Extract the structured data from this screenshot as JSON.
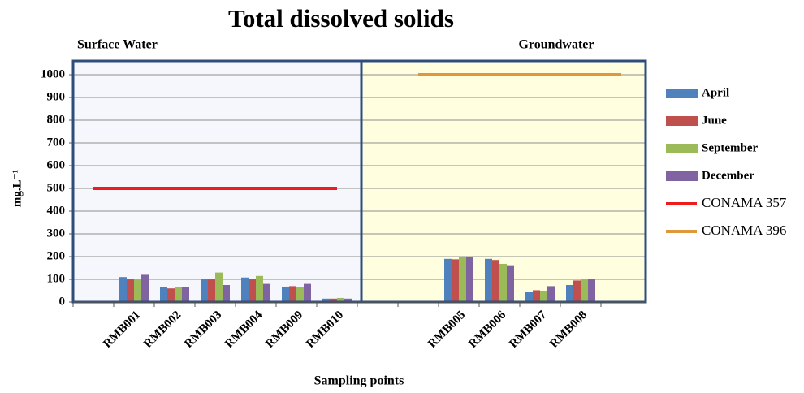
{
  "chart_data": {
    "type": "bar",
    "title": "Total dissolved solids",
    "annotations": [
      "Surface Water",
      "Groundwater"
    ],
    "x_label": "Sampling points",
    "y_label": "mg.L⁻¹",
    "categories": [
      null,
      "RMB001",
      "RMB002",
      "RMB003",
      "RMB004",
      "RMB009",
      "RMB010",
      null,
      null,
      "RMB005",
      "RMB006",
      "RMB007",
      "RMB008",
      null
    ],
    "series": [
      {
        "name": "April",
        "color": "#4f81bd",
        "values": [
          null,
          110,
          65,
          100,
          108,
          68,
          15,
          null,
          null,
          190,
          190,
          45,
          75,
          null
        ]
      },
      {
        "name": "June",
        "color": "#c0504d",
        "values": [
          null,
          100,
          60,
          100,
          100,
          70,
          15,
          null,
          null,
          188,
          185,
          52,
          95,
          null
        ]
      },
      {
        "name": "September",
        "color": "#9bbb59",
        "values": [
          null,
          100,
          65,
          130,
          115,
          65,
          18,
          null,
          null,
          200,
          168,
          50,
          100,
          null
        ]
      },
      {
        "name": "December",
        "color": "#8064a2",
        "values": [
          null,
          120,
          65,
          75,
          80,
          80,
          15,
          null,
          null,
          200,
          162,
          70,
          100,
          null
        ]
      },
      {
        "name": "CONAMA 357",
        "type": "line",
        "color": "#ee1c1c",
        "values": [
          500,
          500,
          500,
          500,
          500,
          500,
          500,
          null,
          null,
          null,
          null,
          null,
          null,
          null
        ]
      },
      {
        "name": "CONAMA 396",
        "type": "line",
        "color": "#e0963a",
        "values": [
          null,
          null,
          null,
          null,
          null,
          null,
          null,
          null,
          1000,
          1000,
          1000,
          1000,
          1000,
          1000
        ]
      }
    ],
    "ylim": [
      0,
      1000
    ],
    "yticks": [
      0,
      100,
      200,
      300,
      400,
      500,
      600,
      700,
      800,
      900,
      1000
    ],
    "grid": true
  }
}
